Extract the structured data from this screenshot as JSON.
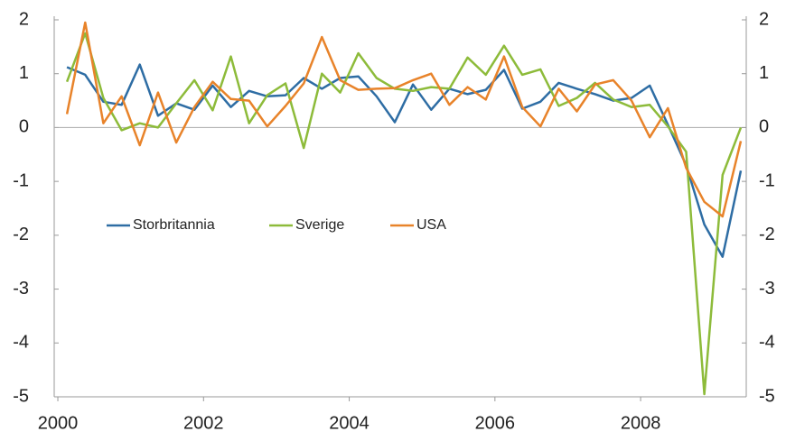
{
  "chart_data": {
    "type": "line",
    "x": [
      2000.125,
      2000.375,
      2000.625,
      2000.875,
      2001.125,
      2001.375,
      2001.625,
      2001.875,
      2002.125,
      2002.375,
      2002.625,
      2002.875,
      2003.125,
      2003.375,
      2003.625,
      2003.875,
      2004.125,
      2004.375,
      2004.625,
      2004.875,
      2005.125,
      2005.375,
      2005.625,
      2005.875,
      2006.125,
      2006.375,
      2006.625,
      2006.875,
      2007.125,
      2007.375,
      2007.625,
      2007.875,
      2008.125,
      2008.375,
      2008.625,
      2008.875,
      2009.125,
      2009.375
    ],
    "series": [
      {
        "name": "Storbritannia",
        "color": "#2e6da4",
        "values": [
          1.12,
          0.98,
          0.48,
          0.42,
          1.17,
          0.22,
          0.45,
          0.33,
          0.78,
          0.38,
          0.68,
          0.58,
          0.6,
          0.92,
          0.72,
          0.92,
          0.95,
          0.58,
          0.1,
          0.8,
          0.33,
          0.72,
          0.62,
          0.7,
          1.07,
          0.35,
          0.48,
          0.83,
          0.72,
          0.62,
          0.5,
          0.55,
          0.78,
          0.05,
          -0.7,
          -1.8,
          -2.4,
          -0.8
        ]
      },
      {
        "name": "Sverige",
        "color": "#8dbb3a",
        "values": [
          0.85,
          1.75,
          0.55,
          -0.05,
          0.08,
          0.0,
          0.45,
          0.88,
          0.32,
          1.32,
          0.08,
          0.6,
          0.82,
          -0.38,
          1.0,
          0.65,
          1.38,
          0.92,
          0.72,
          0.68,
          0.75,
          0.72,
          1.3,
          0.98,
          1.52,
          0.98,
          1.08,
          0.4,
          0.55,
          0.83,
          0.52,
          0.38,
          0.42,
          0.02,
          -0.45,
          -4.95,
          -0.88,
          0.0
        ]
      },
      {
        "name": "USA",
        "color": "#e8832a",
        "values": [
          0.25,
          1.95,
          0.08,
          0.58,
          -0.33,
          0.65,
          -0.28,
          0.38,
          0.85,
          0.53,
          0.5,
          0.02,
          0.4,
          0.82,
          1.68,
          0.88,
          0.7,
          0.72,
          0.73,
          0.88,
          1.0,
          0.42,
          0.75,
          0.52,
          1.32,
          0.38,
          0.02,
          0.72,
          0.3,
          0.8,
          0.88,
          0.5,
          -0.18,
          0.36,
          -0.75,
          -1.38,
          -1.65,
          -0.25
        ]
      }
    ],
    "xlim": [
      1999.95,
      2009.45
    ],
    "xticks": [
      2000,
      2002,
      2004,
      2006,
      2008
    ],
    "ylim": [
      -5,
      2
    ],
    "yticks": [
      -5,
      -4,
      -3,
      -2,
      -1,
      0,
      1,
      2
    ],
    "y2lim": [
      -5,
      2
    ],
    "y2ticks": [
      -5,
      -4,
      -3,
      -2,
      -1,
      0,
      1,
      2
    ]
  }
}
